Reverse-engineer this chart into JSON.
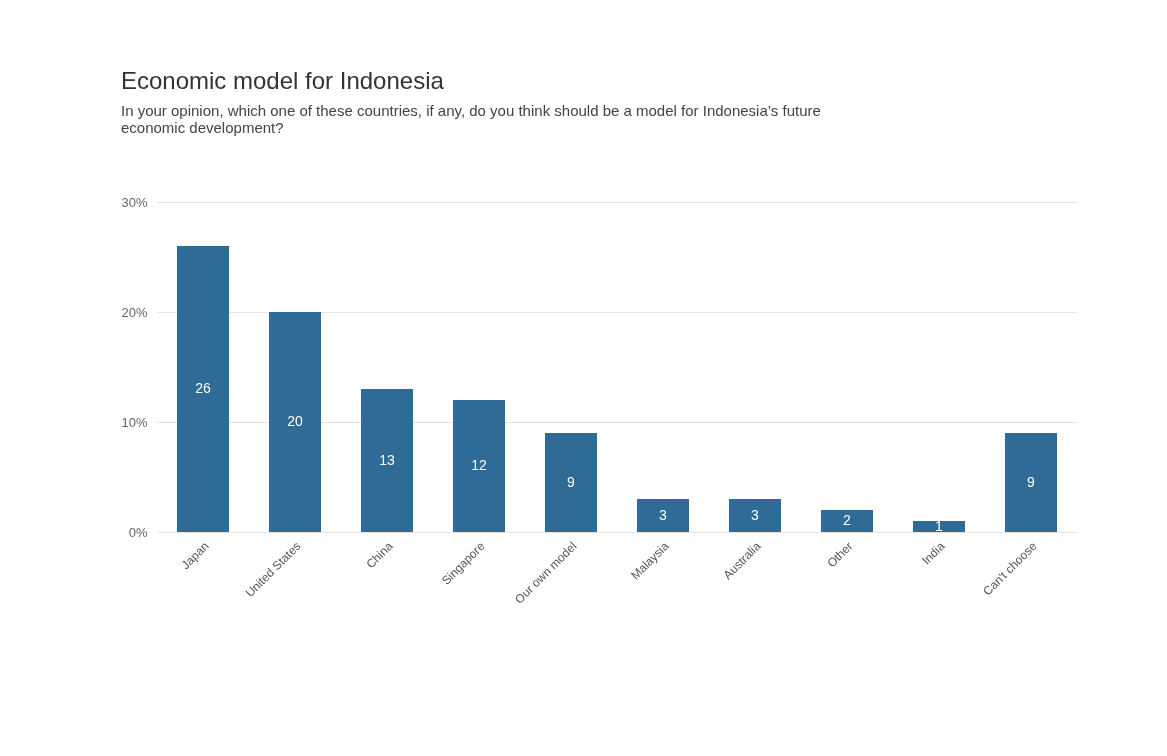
{
  "chart_data": {
    "type": "bar",
    "title": "Economic model for Indonesia",
    "subtitle": "In your opinion, which one of these countries, if any, do you think should be a model for Indonesia’s future economic development?",
    "categories": [
      "Japan",
      "United States",
      "China",
      "Singapore",
      "Our own model",
      "Malaysia",
      "Australia",
      "Other",
      "India",
      "Can't choose"
    ],
    "values": [
      26,
      20,
      13,
      12,
      9,
      3,
      3,
      2,
      1,
      9
    ],
    "color": "#2e6b96",
    "ylim": [
      0,
      30
    ],
    "yticks": [
      {
        "value": 0,
        "label": "0%"
      },
      {
        "value": 10,
        "label": "10%"
      },
      {
        "value": 20,
        "label": "20%"
      },
      {
        "value": 30,
        "label": "30%"
      }
    ],
    "grid": "y",
    "data_labels": true
  }
}
